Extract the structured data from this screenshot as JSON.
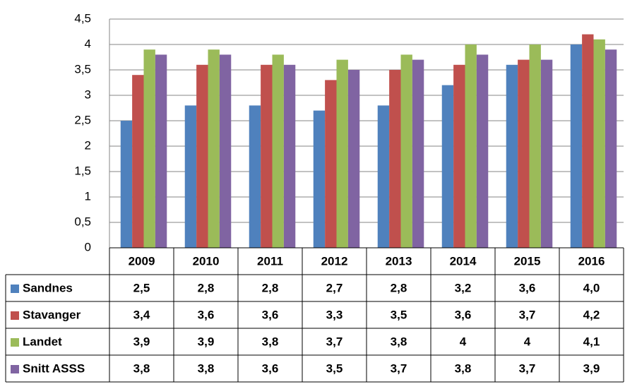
{
  "chart_data": {
    "type": "bar",
    "categories": [
      "2009",
      "2010",
      "2011",
      "2012",
      "2013",
      "2014",
      "2015",
      "2016"
    ],
    "series": [
      {
        "name": "Sandnes",
        "color": "#4f81bd",
        "values": [
          2.5,
          2.8,
          2.8,
          2.7,
          2.8,
          3.2,
          3.6,
          4.0
        ],
        "value_labels": [
          "2,5",
          "2,8",
          "2,8",
          "2,7",
          "2,8",
          "3,2",
          "3,6",
          "4,0"
        ]
      },
      {
        "name": "Stavanger",
        "color": "#c0504d",
        "values": [
          3.4,
          3.6,
          3.6,
          3.3,
          3.5,
          3.6,
          3.7,
          4.2
        ],
        "value_labels": [
          "3,4",
          "3,6",
          "3,6",
          "3,3",
          "3,5",
          "3,6",
          "3,7",
          "4,2"
        ]
      },
      {
        "name": "Landet",
        "color": "#9bbb59",
        "values": [
          3.9,
          3.9,
          3.8,
          3.7,
          3.8,
          4,
          4,
          4.1
        ],
        "value_labels": [
          "3,9",
          "3,9",
          "3,8",
          "3,7",
          "3,8",
          "4",
          "4",
          "4,1"
        ]
      },
      {
        "name": "Snitt ASSS",
        "color": "#8064a2",
        "values": [
          3.8,
          3.8,
          3.6,
          3.5,
          3.7,
          3.8,
          3.7,
          3.9
        ],
        "value_labels": [
          "3,8",
          "3,8",
          "3,6",
          "3,5",
          "3,7",
          "3,8",
          "3,7",
          "3,9"
        ]
      }
    ],
    "ylim": [
      0,
      4.5
    ],
    "yticks": [
      0,
      {
        "value": 0.5,
        "label": "0,5"
      },
      1,
      {
        "value": 1.5,
        "label": "1,5"
      },
      2,
      {
        "value": 2.5,
        "label": "2,5"
      },
      3,
      {
        "value": 3.5,
        "label": "3,5"
      },
      4,
      {
        "value": 4.5,
        "label": "4,5"
      }
    ],
    "grid": true
  }
}
